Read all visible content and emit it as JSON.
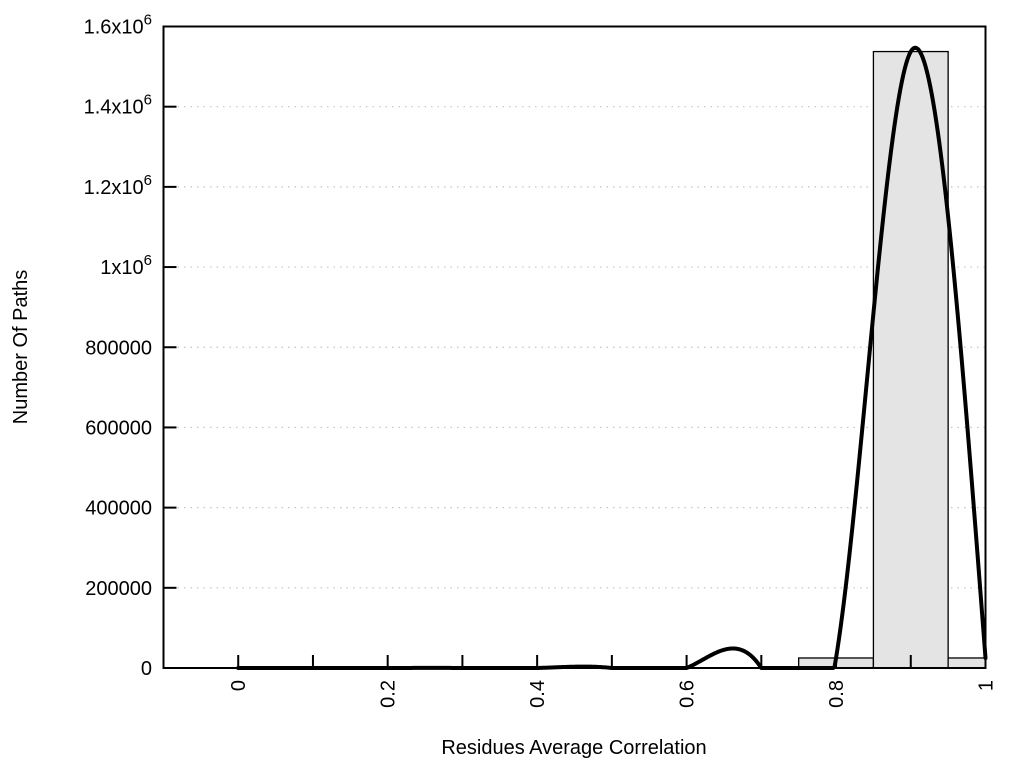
{
  "chart_data": {
    "type": "histogram",
    "title": "",
    "xlabel": "Residues Average Correlation",
    "ylabel": "Number Of Paths",
    "xlim": [
      -0.1,
      1.0
    ],
    "ylim": [
      0,
      1600000
    ],
    "grid": {
      "horizontal_dotted": true,
      "vertical": false
    },
    "legend": "none",
    "bin_width": 0.1,
    "bins": {
      "centers": [
        0,
        0.1,
        0.2,
        0.3,
        0.4,
        0.5,
        0.6,
        0.7,
        0.8,
        0.9,
        1.0
      ],
      "counts": [
        0,
        0,
        0,
        0,
        0,
        0,
        0,
        0,
        25000,
        1537500,
        25000
      ]
    },
    "curve": {
      "smooth": "cspline",
      "points_x": [
        0,
        0.1,
        0.2,
        0.3,
        0.4,
        0.5,
        0.6,
        0.7,
        0.8,
        0.9,
        1.0
      ],
      "points_y": [
        0,
        0,
        0,
        0,
        0,
        0,
        0,
        0,
        25000,
        1537500,
        25000
      ]
    },
    "x_ticks": [
      {
        "v": 0.0,
        "label": "0"
      },
      {
        "v": 0.1,
        "label": ""
      },
      {
        "v": 0.2,
        "label": "0.2"
      },
      {
        "v": 0.3,
        "label": ""
      },
      {
        "v": 0.4,
        "label": "0.4"
      },
      {
        "v": 0.5,
        "label": ""
      },
      {
        "v": 0.6,
        "label": "0.6"
      },
      {
        "v": 0.7,
        "label": ""
      },
      {
        "v": 0.8,
        "label": "0.8"
      },
      {
        "v": 0.9,
        "label": ""
      },
      {
        "v": 1.0,
        "label": "1"
      }
    ],
    "y_ticks": [
      {
        "v": 0,
        "label": "0"
      },
      {
        "v": 200000,
        "label": "200000"
      },
      {
        "v": 400000,
        "label": "400000"
      },
      {
        "v": 600000,
        "label": "600000"
      },
      {
        "v": 800000,
        "label": "800000"
      },
      {
        "v": 1000000,
        "label": "1x10^6"
      },
      {
        "v": 1200000,
        "label": "1.2x10^6"
      },
      {
        "v": 1400000,
        "label": "1.4x10^6"
      },
      {
        "v": 1600000,
        "label": "1.6x10^6"
      }
    ],
    "colors": {
      "background": "#ffffff",
      "axis": "#000000",
      "text": "#000000",
      "grid": "#c4c4c4",
      "bar_fill": "#e4e4e4",
      "bar_border": "#000000",
      "curve": "#000000"
    }
  }
}
